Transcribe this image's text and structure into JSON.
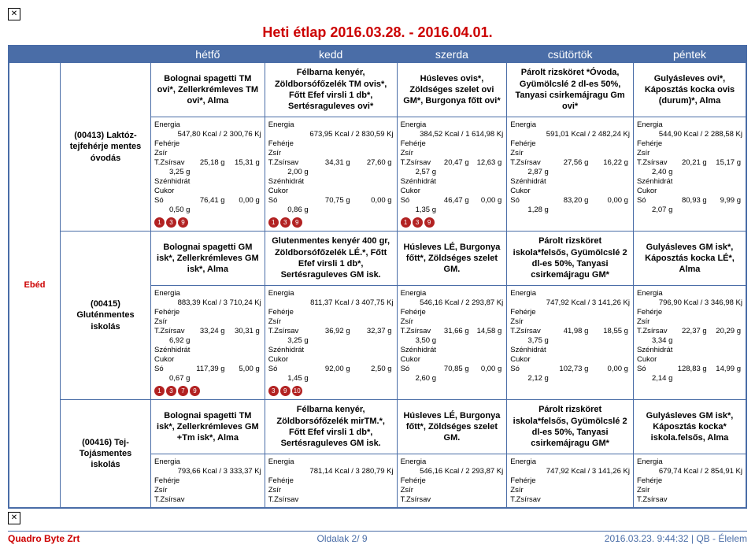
{
  "title": "Heti étlap 2016.03.28. - 2016.04.01.",
  "header_days": [
    "hétfő",
    "kedd",
    "szerda",
    "csütörtök",
    "péntek"
  ],
  "meal_label": "Ebéd",
  "diets": [
    {
      "name": "(00413) Laktóz-tejfehérje mentes óvodás",
      "dishes": [
        "Bolognai spagetti TM ovi*, Zellerkrémleves TM ovi*, Alma",
        "Félbarna kenyér, Zöldborsófőzelék TM ovis*, Főtt Efef virsli 1 db*, Sertésraguleves ovi*",
        "Húsleves ovis*, Zöldséges szelet ovi GM*, Burgonya főtt ovi*",
        "Párolt rizsköret *Óvoda, Gyümölcslé 2 dl-es 50%, Tanyasi csirkemájragu Gm ovi*",
        "Gulyásleves ovi*, Káposztás kocka ovis (durum)*, Alma"
      ],
      "nutri": [
        {
          "energy": "547,80 Kcal / 2 300,76 Kj",
          "fe": "25,18 g",
          "zs": "15,31 g",
          "tzs": "3,25 g",
          "sz": "76,41 g",
          "cu": "0,00 g",
          "so": "0,50 g",
          "al": [
            "1",
            "3",
            "9"
          ]
        },
        {
          "energy": "673,95 Kcal / 2 830,59 Kj",
          "fe": "34,31 g",
          "zs": "27,60 g",
          "tzs": "2,00 g",
          "sz": "70,75 g",
          "cu": "0,00 g",
          "so": "0,86 g",
          "al": [
            "1",
            "3",
            "9"
          ]
        },
        {
          "energy": "384,52 Kcal / 1 614,98 Kj",
          "fe": "20,47 g",
          "zs": "12,63 g",
          "tzs": "2,57 g",
          "sz": "46,47 g",
          "cu": "0,00 g",
          "so": "1,35 g",
          "al": [
            "1",
            "3",
            "9"
          ]
        },
        {
          "energy": "591,01 Kcal / 2 482,24 Kj",
          "fe": "27,56 g",
          "zs": "16,22 g",
          "tzs": "2,87 g",
          "sz": "83,20 g",
          "cu": "0,00 g",
          "so": "1,28 g",
          "al": []
        },
        {
          "energy": "544,90 Kcal / 2 288,58 Kj",
          "fe": "20,21 g",
          "zs": "15,17 g",
          "tzs": "2,40 g",
          "sz": "80,93 g",
          "cu": "9,99 g",
          "so": "2,07 g",
          "al": []
        }
      ]
    },
    {
      "name": "(00415) Gluténmentes iskolás",
      "dishes": [
        "Bolognai spagetti GM isk*, Zellerkrémleves GM isk*, Alma",
        "Glutenmentes kenyér 400 gr, Zöldborsófőzelék LÉ.*, Főtt Efef virsli 1 db*, Sertésraguleves GM isk.",
        "Húsleves LÉ, Burgonya főtt*, Zöldséges szelet GM.",
        "Párolt rizsköret iskola*felsős, Gyümölcslé 2 dl-es 50%, Tanyasi csirkemájragu GM*",
        "Gulyásleves GM isk*, Káposztás kocka LÉ*, Alma"
      ],
      "nutri": [
        {
          "energy": "883,39 Kcal / 3 710,24 Kj",
          "fe": "33,24 g",
          "zs": "30,31 g",
          "tzs": "6,92 g",
          "sz": "117,39 g",
          "cu": "5,00 g",
          "so": "0,67 g",
          "al": [
            "1",
            "3",
            "7",
            "9"
          ]
        },
        {
          "energy": "811,37 Kcal / 3 407,75 Kj",
          "fe": "36,92 g",
          "zs": "32,37 g",
          "tzs": "3,25 g",
          "sz": "92,00 g",
          "cu": "2,50 g",
          "so": "1,45 g",
          "al": [
            "3",
            "9",
            "10"
          ]
        },
        {
          "energy": "546,16 Kcal / 2 293,87 Kj",
          "fe": "31,66 g",
          "zs": "14,58 g",
          "tzs": "3,50 g",
          "sz": "70,85 g",
          "cu": "0,00 g",
          "so": "2,60 g",
          "al": []
        },
        {
          "energy": "747,92 Kcal / 3 141,26 Kj",
          "fe": "41,98 g",
          "zs": "18,55 g",
          "tzs": "3,75 g",
          "sz": "102,73 g",
          "cu": "0,00 g",
          "so": "2,12 g",
          "al": []
        },
        {
          "energy": "796,90 Kcal / 3 346,98 Kj",
          "fe": "22,37 g",
          "zs": "20,29 g",
          "tzs": "3,34 g",
          "sz": "128,83 g",
          "cu": "14,99 g",
          "so": "2,14 g",
          "al": []
        }
      ]
    },
    {
      "name": "(00416) Tej- Tojásmentes iskolás",
      "dishes": [
        "Bolognai spagetti TM isk*, Zellerkrémleves GM +Tm isk*, Alma",
        "Félbarna kenyér, Zöldborsófőzelék mirTM.*, Főtt Efef virsli 1 db*, Sertésraguleves GM isk.",
        "Húsleves LÉ, Burgonya főtt*, Zöldséges szelet GM.",
        "Párolt rizsköret iskola*felsős, Gyümölcslé 2 dl-es 50%, Tanyasi csirkemájragu GM*",
        "Gulyásleves GM isk*, Káposztás kocka* iskola.felsős, Alma"
      ],
      "nutri": [
        {
          "energy": "793,66 Kcal / 3 333,37 Kj",
          "fe": "",
          "zs": "",
          "tzs": "",
          "sz": "",
          "cu": "",
          "so": "",
          "al": []
        },
        {
          "energy": "781,14 Kcal / 3 280,79 Kj",
          "fe": "",
          "zs": "",
          "tzs": "",
          "sz": "",
          "cu": "",
          "so": "",
          "al": []
        },
        {
          "energy": "546,16 Kcal / 2 293,87 Kj",
          "fe": "",
          "zs": "",
          "tzs": "",
          "sz": "",
          "cu": "",
          "so": "",
          "al": []
        },
        {
          "energy": "747,92 Kcal / 3 141,26 Kj",
          "fe": "",
          "zs": "",
          "tzs": "",
          "sz": "",
          "cu": "",
          "so": "",
          "al": []
        },
        {
          "energy": "679,74 Kcal / 2 854,91 Kj",
          "fe": "",
          "zs": "",
          "tzs": "",
          "sz": "",
          "cu": "",
          "so": "",
          "al": []
        }
      ],
      "partial": true
    }
  ],
  "nutri_labels": {
    "energy": "Energia",
    "fe": "Fehérje",
    "zs": "Zsír",
    "tzs": "T.Zsírsav",
    "sz": "Szénhidrát",
    "cu": "Cukor",
    "so": "Só"
  },
  "footer": {
    "left": "Quadro Byte Zrt",
    "center": "Oldalak     2/ 9",
    "right": "2016.03.23.  9:44:32 | QB - Élelem"
  }
}
